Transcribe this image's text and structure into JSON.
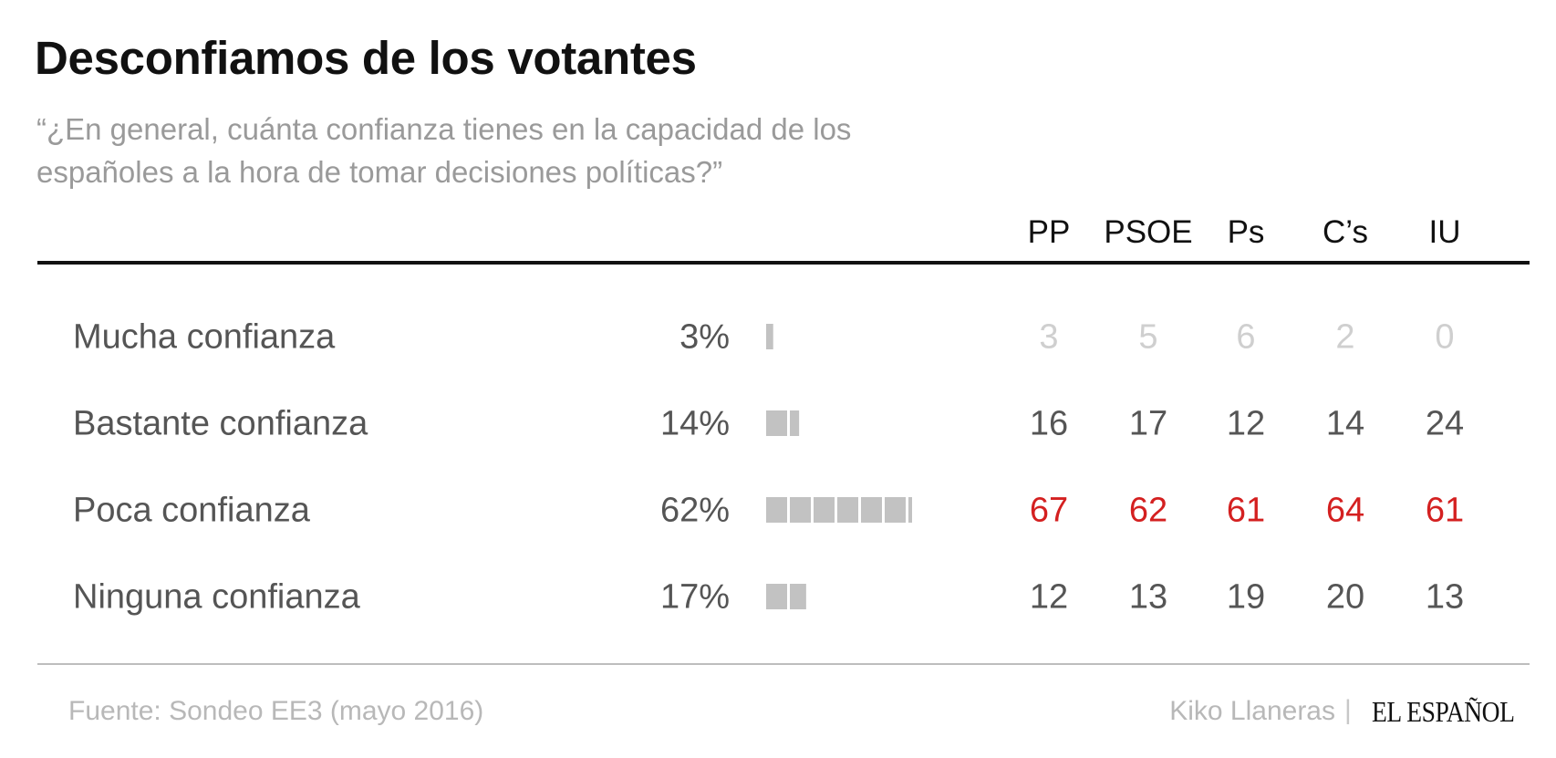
{
  "title": "Desconfiamos de los votantes",
  "subtitle": "“¿En general, cuánta confianza tienes en la capacidad de los españoles a la hora de tomar decisiones políticas?”",
  "colors": {
    "bar": "#c2c2c2",
    "highlight": "#d42020",
    "faded": "#cfcfcf",
    "text": "#555555"
  },
  "chart_data": {
    "type": "table",
    "columns": [
      "PP",
      "PSOE",
      "Ps",
      "C’s",
      "IU"
    ],
    "rows": [
      {
        "label": "Mucha confianza",
        "pct_label": "3%",
        "value": 3,
        "cells": [
          "3",
          "5",
          "6",
          "2",
          "0"
        ],
        "style": "faded"
      },
      {
        "label": "Bastante confianza",
        "pct_label": "14%",
        "value": 14,
        "cells": [
          "16",
          "17",
          "12",
          "14",
          "24"
        ],
        "style": "normal"
      },
      {
        "label": "Poca confianza",
        "pct_label": "62%",
        "value": 62,
        "cells": [
          "67",
          "62",
          "61",
          "64",
          "61"
        ],
        "style": "highlight"
      },
      {
        "label": "Ninguna confianza",
        "pct_label": "17%",
        "value": 17,
        "cells": [
          "12",
          "13",
          "19",
          "20",
          "13"
        ],
        "style": "normal"
      }
    ]
  },
  "footer": {
    "source": "Fuente: Sondeo EE3 (mayo 2016)",
    "author": "Kiko Llaneras",
    "separator": "|",
    "logo": "EL ESPAÑOL"
  }
}
